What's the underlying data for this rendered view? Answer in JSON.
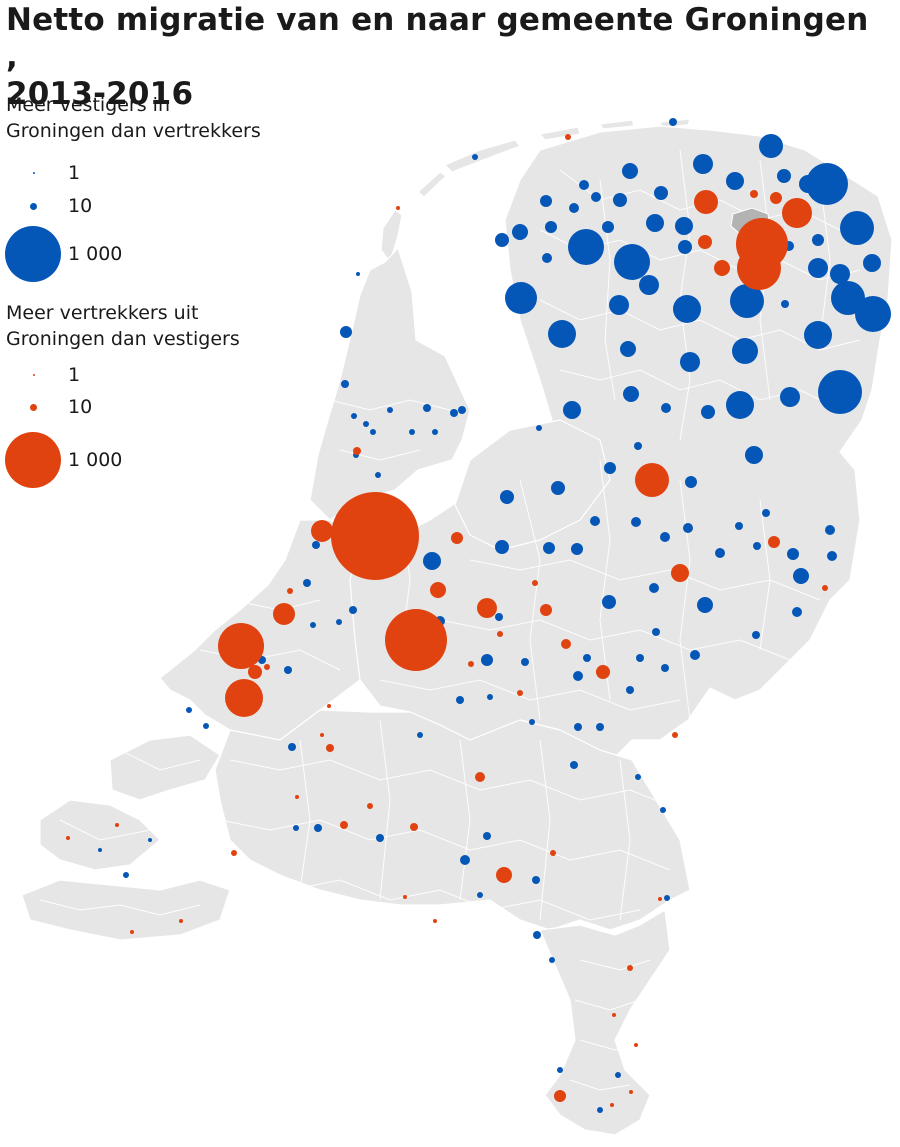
{
  "title": {
    "line1": "Netto migratie van en naar gemeente Groningen ,",
    "line2": "2013-2016"
  },
  "legend": {
    "positive": {
      "heading_line1": "Meer vestigers in",
      "heading_line2": "Groningen dan vertrekkers",
      "color": "#0557b7",
      "entries": [
        {
          "label": "1",
          "value": 1
        },
        {
          "label": "10",
          "value": 10
        },
        {
          "label": "1 000",
          "value": 1000
        }
      ]
    },
    "negative": {
      "heading_line1": "Meer vertrekkers uit",
      "heading_line2": "Groningen dan vestigers",
      "color": "#e0430f",
      "entries": [
        {
          "label": "1",
          "value": 1
        },
        {
          "label": "10",
          "value": 10
        },
        {
          "label": "1 000",
          "value": 1000
        }
      ]
    }
  },
  "colors": {
    "land": "#e6e6e6",
    "borders": "#ffffff",
    "groningen_municipality": "#b3b3b3",
    "positive": "#0557b7",
    "negative": "#e0430f"
  }
}
